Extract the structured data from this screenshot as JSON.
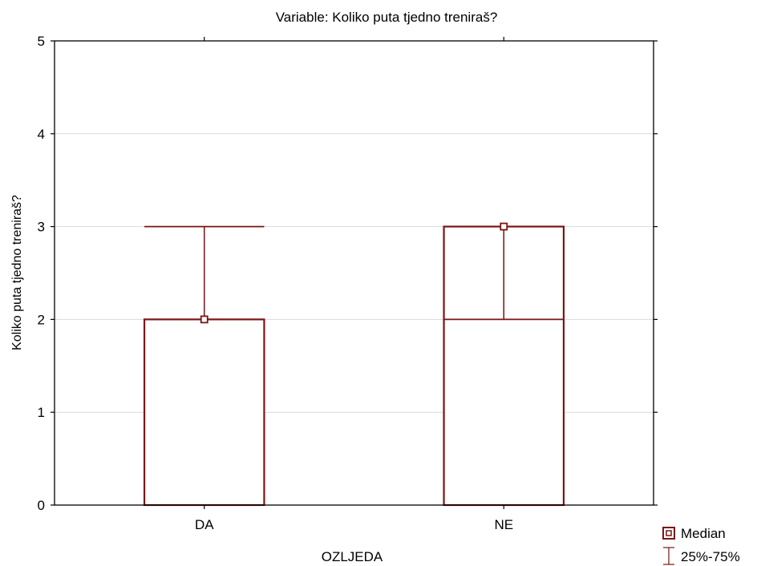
{
  "chart_data": {
    "type": "box",
    "title": "Variable: Koliko puta tjedno treniraš?",
    "xlabel": "OZLJEDA",
    "ylabel": "Koliko puta tjedno treniraš?",
    "ylim": [
      0,
      5
    ],
    "yticks": [
      0,
      1,
      2,
      3,
      4,
      5
    ],
    "grid": true,
    "categories": [
      "DA",
      "NE"
    ],
    "groups": [
      {
        "category": "DA",
        "median": 2,
        "q1": 0,
        "q3": 2,
        "upper": 3,
        "lower": 2
      },
      {
        "category": "NE",
        "median": 3,
        "q1": 0,
        "q3": 3,
        "upper": 3,
        "lower": 2
      }
    ],
    "legend": {
      "position": "bottom-right",
      "items": [
        {
          "label": "Median",
          "symbol": "square"
        },
        {
          "label": "25%-75%",
          "symbol": "whisker"
        }
      ]
    },
    "colors": {
      "series": "#7a1515",
      "grid": "#d9d9d9",
      "axis": "#000000"
    }
  }
}
